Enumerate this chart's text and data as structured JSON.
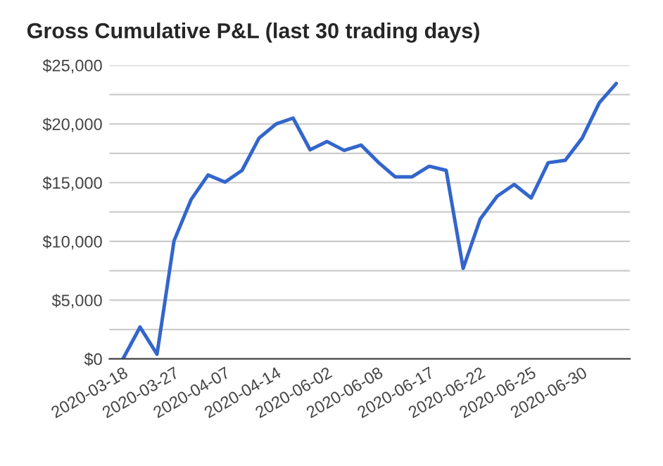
{
  "chart_data": {
    "type": "line",
    "title": "Gross Cumulative P&L (last 30 trading days)",
    "categories": [
      "2020-03-18",
      null,
      null,
      "2020-03-27",
      null,
      null,
      "2020-04-07",
      null,
      null,
      "2020-04-14",
      null,
      null,
      "2020-06-02",
      null,
      null,
      "2020-06-08",
      null,
      null,
      "2020-06-17",
      null,
      null,
      "2020-06-22",
      null,
      null,
      "2020-06-25",
      null,
      null,
      "2020-06-30",
      null,
      null
    ],
    "series": [
      {
        "color": "#3366cc",
        "values": [
          0,
          2700,
          400,
          10050,
          13550,
          15650,
          15050,
          16050,
          18800,
          20000,
          20500,
          17800,
          18500,
          17750,
          18200,
          16750,
          15500,
          15500,
          16400,
          16050,
          7700,
          11900,
          13850,
          14850,
          13700,
          16700,
          16900,
          18800,
          21800,
          23450
        ]
      }
    ],
    "ylim": [
      0,
      25000
    ],
    "yticks": [
      {
        "value": 0,
        "label": "$0"
      },
      {
        "value": 2500,
        "label": null
      },
      {
        "value": 5000,
        "label": "$5,000"
      },
      {
        "value": 7500,
        "label": null
      },
      {
        "value": 10000,
        "label": "$10,000"
      },
      {
        "value": 12500,
        "label": null
      },
      {
        "value": 15000,
        "label": "$15,000"
      },
      {
        "value": 17500,
        "label": null
      },
      {
        "value": 20000,
        "label": "$20,000"
      },
      {
        "value": 22500,
        "label": null
      },
      {
        "value": 25000,
        "label": "$25,000"
      }
    ],
    "grid": "y",
    "legend": false,
    "marker": "none",
    "line_style": "solid"
  }
}
